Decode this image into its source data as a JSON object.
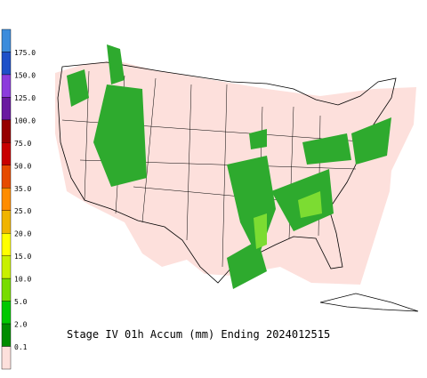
{
  "legend": {
    "labels": [
      "175.0",
      "150.0",
      "125.0",
      "100.0",
      "75.0",
      "50.0",
      "35.0",
      "25.0",
      "20.0",
      "15.0",
      "10.0",
      "5.0",
      "2.0",
      "0.1"
    ],
    "colors": [
      "#3c8cdc",
      "#1e50c8",
      "#8c3cdc",
      "#6a1aa0",
      "#960000",
      "#c80000",
      "#e64b00",
      "#ff8c00",
      "#f0b400",
      "#ffff00",
      "#c8f000",
      "#78dc00",
      "#00c800",
      "#008c00",
      "#fde0dc"
    ]
  },
  "caption": "Stage IV 01h Accum (mm) Ending 2024012515"
}
